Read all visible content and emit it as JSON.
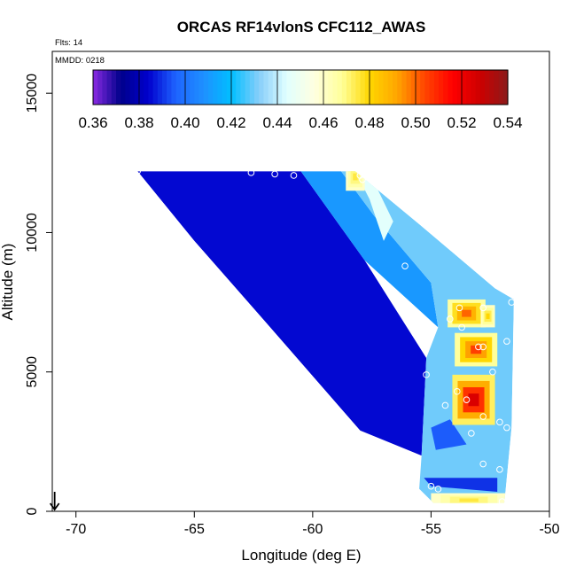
{
  "chart_data": {
    "type": "heatmap",
    "title": "ORCAS RF14vlonS CFC112_AWAS",
    "annotations": {
      "flights": "Flts: 14",
      "date": "MMDD: 0218"
    },
    "xlabel": "Longitude (deg E)",
    "ylabel": "Altitude (m)",
    "xlim": [
      -71,
      -50
    ],
    "ylim": [
      0,
      16500
    ],
    "xticks": [
      -70,
      -65,
      -60,
      -55,
      -50
    ],
    "xtick_labels": [
      "-70",
      "-65",
      "-60",
      "-55",
      "-50"
    ],
    "yticks": [
      0,
      5000,
      10000,
      15000
    ],
    "ytick_labels": [
      "0",
      "5000",
      "10000",
      "15000"
    ],
    "colorbar": {
      "range": [
        0.36,
        0.54
      ],
      "ticks": [
        0.36,
        0.38,
        0.4,
        0.42,
        0.44,
        0.46,
        0.48,
        0.5,
        0.52,
        0.54
      ],
      "tick_labels": [
        "0.36",
        "0.38",
        "0.40",
        "0.42",
        "0.44",
        "0.46",
        "0.48",
        "0.50",
        "0.52",
        "0.54"
      ],
      "colors": [
        "#8a2be2",
        "#00008b",
        "#0000cd",
        "#1e64ff",
        "#1e90ff",
        "#00bfff",
        "#87cefa",
        "#e0ffff",
        "#ffffe0",
        "#ffff99",
        "#ffd700",
        "#ffa500",
        "#ff4500",
        "#ff0000",
        "#cd0000",
        "#8b1a1a"
      ]
    },
    "field_domain": [
      [
        -67.4,
        12200
      ],
      [
        -58.2,
        12200
      ],
      [
        -55.5,
        10300
      ],
      [
        -52.3,
        8000
      ],
      [
        -51.5,
        7600
      ],
      [
        -51.6,
        3000
      ],
      [
        -51.9,
        300
      ],
      [
        -54.9,
        300
      ],
      [
        -55.5,
        800
      ],
      [
        -58.0,
        2900
      ],
      [
        -62.0,
        6800
      ],
      [
        -65.0,
        9700
      ]
    ],
    "field_regions": [
      {
        "value": 0.385,
        "polygon": [
          [
            -67.4,
            12200
          ],
          [
            -60.5,
            12200
          ],
          [
            -57.8,
            9000
          ],
          [
            -55.2,
            5500
          ],
          [
            -55.4,
            2000
          ],
          [
            -58.0,
            2900
          ],
          [
            -62.0,
            6800
          ],
          [
            -65.0,
            9700
          ]
        ]
      },
      {
        "value": 0.41,
        "polygon": [
          [
            -60.5,
            12200
          ],
          [
            -58.8,
            12200
          ],
          [
            -57.4,
            10600
          ],
          [
            -55.0,
            8200
          ],
          [
            -54.7,
            6600
          ],
          [
            -57.8,
            9000
          ]
        ]
      },
      {
        "value": 0.43,
        "polygon": [
          [
            -58.8,
            12200
          ],
          [
            -58.2,
            12200
          ],
          [
            -55.5,
            10300
          ],
          [
            -52.3,
            8000
          ],
          [
            -51.5,
            7600
          ],
          [
            -51.6,
            3000
          ],
          [
            -51.9,
            300
          ],
          [
            -54.9,
            300
          ],
          [
            -55.5,
            800
          ],
          [
            -55.4,
            2000
          ],
          [
            -55.2,
            5500
          ],
          [
            -54.7,
            6600
          ],
          [
            -55.0,
            8200
          ],
          [
            -57.4,
            10600
          ]
        ]
      },
      {
        "value": 0.445,
        "polygon": [
          [
            -58.2,
            12200
          ],
          [
            -57.6,
            11200
          ],
          [
            -57.0,
            9700
          ],
          [
            -56.6,
            10400
          ],
          [
            -57.4,
            11800
          ]
        ]
      },
      {
        "value": 0.39,
        "polygon": [
          [
            -55.3,
            1200
          ],
          [
            -52.2,
            1200
          ],
          [
            -52.2,
            700
          ],
          [
            -55.0,
            900
          ]
        ]
      },
      {
        "value": 0.395,
        "polygon": [
          [
            -54.8,
            2200
          ],
          [
            -53.5,
            2400
          ],
          [
            -54.2,
            3300
          ],
          [
            -55.0,
            3000
          ]
        ]
      }
    ],
    "hotspots": [
      {
        "lon": -53.2,
        "alt": 4000,
        "rx": 0.9,
        "ry": 900,
        "peak": 0.525
      },
      {
        "lon": -53.1,
        "alt": 5800,
        "rx": 0.9,
        "ry": 600,
        "peak": 0.505
      },
      {
        "lon": -53.5,
        "alt": 7100,
        "rx": 0.8,
        "ry": 500,
        "peak": 0.5
      },
      {
        "lon": -52.6,
        "alt": 7000,
        "rx": 0.3,
        "ry": 400,
        "peak": 0.48
      },
      {
        "lon": -58.2,
        "alt": 12000,
        "rx": 0.4,
        "ry": 500,
        "peak": 0.475
      },
      {
        "lon": -53.4,
        "alt": 400,
        "rx": 1.6,
        "ry": 250,
        "peak": 0.475
      }
    ],
    "sample_points": [
      {
        "lon": -67.4,
        "alt": 12200
      },
      {
        "lon": -62.6,
        "alt": 12150
      },
      {
        "lon": -61.6,
        "alt": 12100
      },
      {
        "lon": -60.8,
        "alt": 12050
      },
      {
        "lon": -58.0,
        "alt": 12050
      },
      {
        "lon": -57.9,
        "alt": 11900
      },
      {
        "lon": -56.1,
        "alt": 8800
      },
      {
        "lon": -53.8,
        "alt": 7300
      },
      {
        "lon": -52.8,
        "alt": 7300
      },
      {
        "lon": -51.6,
        "alt": 7500
      },
      {
        "lon": -54.2,
        "alt": 6900
      },
      {
        "lon": -53.7,
        "alt": 6600
      },
      {
        "lon": -51.8,
        "alt": 6100
      },
      {
        "lon": -53.0,
        "alt": 5900
      },
      {
        "lon": -52.8,
        "alt": 5900
      },
      {
        "lon": -55.2,
        "alt": 4900
      },
      {
        "lon": -52.4,
        "alt": 5000
      },
      {
        "lon": -53.9,
        "alt": 4300
      },
      {
        "lon": -54.4,
        "alt": 3800
      },
      {
        "lon": -53.5,
        "alt": 4000
      },
      {
        "lon": -52.8,
        "alt": 3400
      },
      {
        "lon": -52.1,
        "alt": 3200
      },
      {
        "lon": -51.8,
        "alt": 3000
      },
      {
        "lon": -53.3,
        "alt": 2800
      },
      {
        "lon": -52.8,
        "alt": 1700
      },
      {
        "lon": -52.1,
        "alt": 1500
      },
      {
        "lon": -55.0,
        "alt": 900
      },
      {
        "lon": -54.7,
        "alt": 800
      },
      {
        "lon": -55.0,
        "alt": 150
      },
      {
        "lon": -53.6,
        "alt": 150
      },
      {
        "lon": -52.0,
        "alt": 350
      }
    ],
    "arrow_marker": {
      "lon": -70.9,
      "alt": 700
    }
  }
}
